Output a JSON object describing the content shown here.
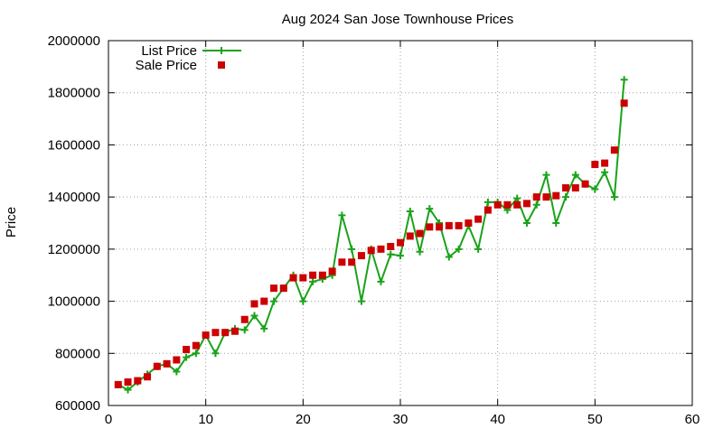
{
  "chart_data": {
    "type": "line",
    "title": "Aug 2024 San Jose Townhouse Prices",
    "xlabel": "",
    "ylabel": "Price",
    "xlim": [
      0,
      60
    ],
    "ylim": [
      600000,
      2000000
    ],
    "x_ticks": [
      0,
      10,
      20,
      30,
      40,
      50,
      60
    ],
    "y_ticks": [
      600000,
      800000,
      1000000,
      1200000,
      1400000,
      1600000,
      1800000,
      2000000
    ],
    "grid": true,
    "legend_position": "top-left",
    "series": [
      {
        "name": "List Price",
        "style": "linespoints",
        "marker": "plus",
        "color": "#1aa31a",
        "x": [
          1,
          2,
          3,
          4,
          5,
          6,
          7,
          8,
          9,
          10,
          11,
          12,
          13,
          14,
          15,
          16,
          17,
          18,
          19,
          20,
          21,
          22,
          23,
          24,
          25,
          26,
          27,
          28,
          29,
          30,
          31,
          32,
          33,
          34,
          35,
          36,
          37,
          38,
          39,
          40,
          41,
          42,
          43,
          44,
          45,
          46,
          47,
          48,
          49,
          50,
          51,
          52,
          53
        ],
        "y": [
          680000,
          660000,
          690000,
          720000,
          750000,
          760000,
          730000,
          785000,
          800000,
          870000,
          800000,
          880000,
          895000,
          890000,
          945000,
          895000,
          1000000,
          1050000,
          1100000,
          1000000,
          1075000,
          1085000,
          1100000,
          1330000,
          1200000,
          1000000,
          1200000,
          1075000,
          1180000,
          1175000,
          1345000,
          1190000,
          1355000,
          1300000,
          1170000,
          1200000,
          1290000,
          1200000,
          1380000,
          1380000,
          1350000,
          1395000,
          1300000,
          1370000,
          1485000,
          1300000,
          1400000,
          1485000,
          1450000,
          1430000,
          1495000,
          1400000,
          1850000
        ]
      },
      {
        "name": "Sale Price",
        "style": "points",
        "marker": "square",
        "color": "#cc0000",
        "x": [
          1,
          2,
          3,
          4,
          5,
          6,
          7,
          8,
          9,
          10,
          11,
          12,
          13,
          14,
          15,
          16,
          17,
          18,
          19,
          20,
          21,
          22,
          23,
          24,
          25,
          26,
          27,
          28,
          29,
          30,
          31,
          32,
          33,
          34,
          35,
          36,
          37,
          38,
          39,
          40,
          41,
          42,
          43,
          44,
          45,
          46,
          47,
          48,
          49,
          50,
          51,
          52,
          53
        ],
        "y": [
          680000,
          690000,
          695000,
          710000,
          750000,
          760000,
          775000,
          815000,
          830000,
          870000,
          880000,
          880000,
          885000,
          930000,
          990000,
          1000000,
          1050000,
          1050000,
          1090000,
          1090000,
          1100000,
          1100000,
          1115000,
          1150000,
          1150000,
          1175000,
          1195000,
          1200000,
          1210000,
          1225000,
          1250000,
          1260000,
          1285000,
          1285000,
          1290000,
          1290000,
          1300000,
          1315000,
          1350000,
          1370000,
          1370000,
          1370000,
          1375000,
          1400000,
          1400000,
          1405000,
          1435000,
          1435000,
          1450000,
          1525000,
          1530000,
          1580000,
          1760000
        ]
      }
    ]
  }
}
